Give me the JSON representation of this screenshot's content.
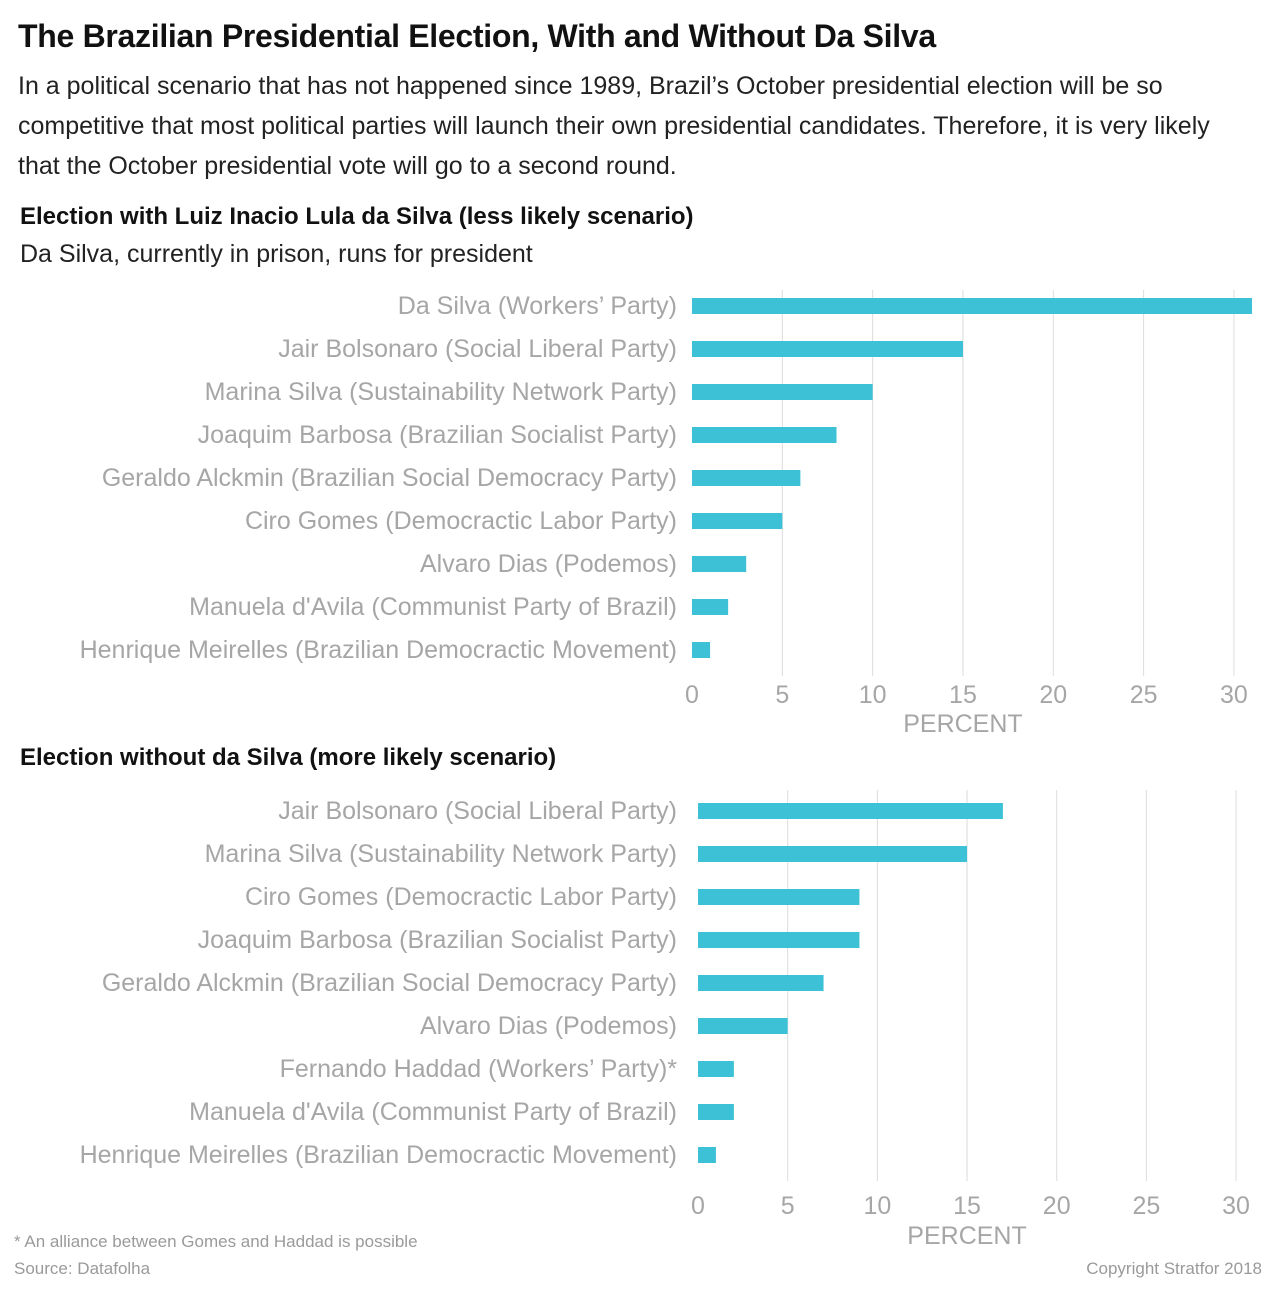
{
  "header": {
    "title": "The Brazilian Presidential Election, With and Without Da Silva",
    "intro": "In a political scenario that has not happened since 1989, Brazil’s October presidential election will be so competitive that most political parties will launch their own presidential candidates. Therefore, it is very likely that the October presidential vote will go to a second round."
  },
  "chart_data": [
    {
      "type": "bar",
      "orientation": "horizontal",
      "title": "Election with Luiz Inacio Lula da Silva (less likely scenario)",
      "subtitle": "Da Silva, currently in prison, runs for president",
      "xlabel": "PERCENT",
      "xlim": [
        0,
        31
      ],
      "xticks": [
        0,
        5,
        10,
        15,
        20,
        25,
        30
      ],
      "grid": true,
      "bar_color": "#3dc1d6",
      "categories": [
        "Da Silva (Workers’ Party)",
        "Jair Bolsonaro (Social Liberal Party)",
        "Marina Silva (Sustainability Network Party)",
        "Joaquim Barbosa (Brazilian Socialist Party)",
        "Geraldo Alckmin (Brazilian Social Democracy Party)",
        "Ciro Gomes (Democractic Labor Party)",
        "Alvaro Dias (Podemos)",
        "Manuela d'Avila (Communist Party of Brazil)",
        "Henrique Meirelles (Brazilian Democractic Movement)"
      ],
      "values": [
        31,
        15,
        10,
        8,
        6,
        5,
        3,
        2,
        1
      ]
    },
    {
      "type": "bar",
      "orientation": "horizontal",
      "title": "Election without da Silva (more likely scenario)",
      "xlabel": "PERCENT",
      "xlim": [
        0,
        31
      ],
      "xticks": [
        0,
        5,
        10,
        15,
        20,
        25,
        30
      ],
      "grid": true,
      "bar_color": "#3dc1d6",
      "categories": [
        "Jair Bolsonaro (Social Liberal Party)",
        "Marina Silva (Sustainability Network Party)",
        "Ciro Gomes (Democractic Labor Party)",
        "Joaquim Barbosa (Brazilian Socialist Party)",
        "Geraldo Alckmin (Brazilian Social Democracy Party)",
        "Alvaro Dias (Podemos)",
        "Fernando Haddad (Workers’ Party)*",
        "Manuela d'Avila (Communist Party of Brazil)",
        "Henrique Meirelles (Brazilian Democractic Movement)"
      ],
      "values": [
        17,
        15,
        9,
        9,
        7,
        5,
        2,
        2,
        1
      ]
    }
  ],
  "footer": {
    "note": "* An alliance between Gomes and Haddad is possible",
    "source": "Source: Datafolha",
    "copyright": "Copyright Stratfor 2018"
  }
}
